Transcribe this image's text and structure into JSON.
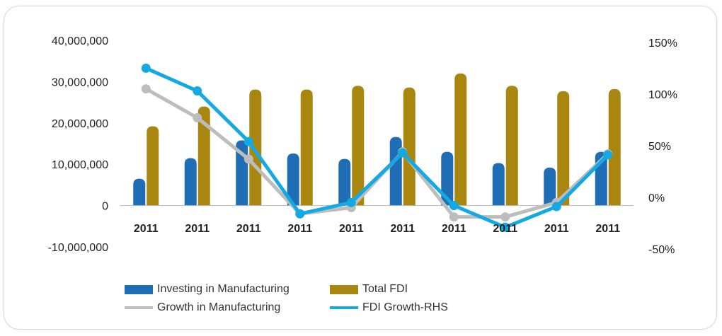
{
  "chart_data": {
    "type": "bar",
    "categories": [
      "2011",
      "2011",
      "2011",
      "2011",
      "2011",
      "2011",
      "2011",
      "2011",
      "2011",
      "2011"
    ],
    "left_axis": {
      "ylim": [
        -10000000,
        40000000
      ],
      "ticks": [
        "40,000,000",
        "30,000,000",
        "20,000,000",
        "10,000,000",
        "0",
        "-10,000,000"
      ]
    },
    "right_axis": {
      "ylim": [
        -50,
        150
      ],
      "unit": "%",
      "ticks": [
        "150%",
        "100%",
        "50%",
        "0%",
        "-50%"
      ]
    },
    "series": [
      {
        "name": "Investing in Manufacturing",
        "type": "bar",
        "axis": "left",
        "color": "#1f6db5",
        "values": [
          6500000,
          11500000,
          15800000,
          12600000,
          11300000,
          16600000,
          13000000,
          10300000,
          9200000,
          13000000
        ]
      },
      {
        "name": "Total FDI",
        "type": "bar",
        "axis": "left",
        "color": "#a8860f",
        "values": [
          19200000,
          24000000,
          28100000,
          28100000,
          29000000,
          28600000,
          32000000,
          29000000,
          27700000,
          28200000
        ]
      },
      {
        "name": "Growth in Manufacturing",
        "type": "line",
        "axis": "right",
        "color": "#bdbdbd",
        "values": [
          103,
          75,
          35,
          -18,
          -12,
          42,
          -21,
          -21,
          -7,
          40
        ]
      },
      {
        "name": "FDI Growth-RHS",
        "type": "line",
        "axis": "right",
        "color": "#14a9e2",
        "values": [
          123,
          101,
          52,
          -18,
          -7,
          41,
          -10,
          -31,
          -11,
          39
        ]
      }
    ],
    "legend_position": "bottom",
    "grid": false
  }
}
